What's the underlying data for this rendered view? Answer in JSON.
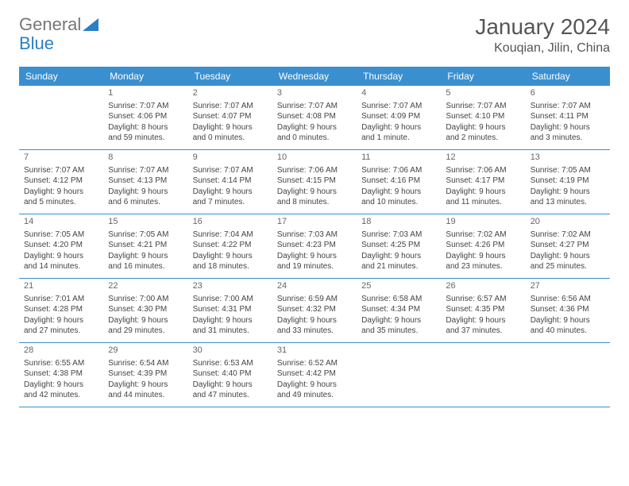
{
  "logo": {
    "text_gray": "General",
    "text_blue": "Blue"
  },
  "header": {
    "month": "January 2024",
    "location": "Kouqian, Jilin, China"
  },
  "colors": {
    "header_bg": "#3a8fcf",
    "header_text": "#ffffff",
    "border": "#3a8fcf",
    "text": "#444444",
    "title": "#555555",
    "bg": "#ffffff",
    "logo_gray": "#777777",
    "logo_blue": "#2b7fc4"
  },
  "layout": {
    "columns": 7,
    "fontsize_body": 10,
    "fontsize_header": 12,
    "fontsize_title": 28,
    "fontsize_location": 16
  },
  "weekdays": [
    "Sunday",
    "Monday",
    "Tuesday",
    "Wednesday",
    "Thursday",
    "Friday",
    "Saturday"
  ],
  "days": [
    null,
    {
      "n": "1",
      "sunrise": "7:07 AM",
      "sunset": "4:06 PM",
      "daylight": "8 hours and 59 minutes."
    },
    {
      "n": "2",
      "sunrise": "7:07 AM",
      "sunset": "4:07 PM",
      "daylight": "9 hours and 0 minutes."
    },
    {
      "n": "3",
      "sunrise": "7:07 AM",
      "sunset": "4:08 PM",
      "daylight": "9 hours and 0 minutes."
    },
    {
      "n": "4",
      "sunrise": "7:07 AM",
      "sunset": "4:09 PM",
      "daylight": "9 hours and 1 minute."
    },
    {
      "n": "5",
      "sunrise": "7:07 AM",
      "sunset": "4:10 PM",
      "daylight": "9 hours and 2 minutes."
    },
    {
      "n": "6",
      "sunrise": "7:07 AM",
      "sunset": "4:11 PM",
      "daylight": "9 hours and 3 minutes."
    },
    {
      "n": "7",
      "sunrise": "7:07 AM",
      "sunset": "4:12 PM",
      "daylight": "9 hours and 5 minutes."
    },
    {
      "n": "8",
      "sunrise": "7:07 AM",
      "sunset": "4:13 PM",
      "daylight": "9 hours and 6 minutes."
    },
    {
      "n": "9",
      "sunrise": "7:07 AM",
      "sunset": "4:14 PM",
      "daylight": "9 hours and 7 minutes."
    },
    {
      "n": "10",
      "sunrise": "7:06 AM",
      "sunset": "4:15 PM",
      "daylight": "9 hours and 8 minutes."
    },
    {
      "n": "11",
      "sunrise": "7:06 AM",
      "sunset": "4:16 PM",
      "daylight": "9 hours and 10 minutes."
    },
    {
      "n": "12",
      "sunrise": "7:06 AM",
      "sunset": "4:17 PM",
      "daylight": "9 hours and 11 minutes."
    },
    {
      "n": "13",
      "sunrise": "7:05 AM",
      "sunset": "4:19 PM",
      "daylight": "9 hours and 13 minutes."
    },
    {
      "n": "14",
      "sunrise": "7:05 AM",
      "sunset": "4:20 PM",
      "daylight": "9 hours and 14 minutes."
    },
    {
      "n": "15",
      "sunrise": "7:05 AM",
      "sunset": "4:21 PM",
      "daylight": "9 hours and 16 minutes."
    },
    {
      "n": "16",
      "sunrise": "7:04 AM",
      "sunset": "4:22 PM",
      "daylight": "9 hours and 18 minutes."
    },
    {
      "n": "17",
      "sunrise": "7:03 AM",
      "sunset": "4:23 PM",
      "daylight": "9 hours and 19 minutes."
    },
    {
      "n": "18",
      "sunrise": "7:03 AM",
      "sunset": "4:25 PM",
      "daylight": "9 hours and 21 minutes."
    },
    {
      "n": "19",
      "sunrise": "7:02 AM",
      "sunset": "4:26 PM",
      "daylight": "9 hours and 23 minutes."
    },
    {
      "n": "20",
      "sunrise": "7:02 AM",
      "sunset": "4:27 PM",
      "daylight": "9 hours and 25 minutes."
    },
    {
      "n": "21",
      "sunrise": "7:01 AM",
      "sunset": "4:28 PM",
      "daylight": "9 hours and 27 minutes."
    },
    {
      "n": "22",
      "sunrise": "7:00 AM",
      "sunset": "4:30 PM",
      "daylight": "9 hours and 29 minutes."
    },
    {
      "n": "23",
      "sunrise": "7:00 AM",
      "sunset": "4:31 PM",
      "daylight": "9 hours and 31 minutes."
    },
    {
      "n": "24",
      "sunrise": "6:59 AM",
      "sunset": "4:32 PM",
      "daylight": "9 hours and 33 minutes."
    },
    {
      "n": "25",
      "sunrise": "6:58 AM",
      "sunset": "4:34 PM",
      "daylight": "9 hours and 35 minutes."
    },
    {
      "n": "26",
      "sunrise": "6:57 AM",
      "sunset": "4:35 PM",
      "daylight": "9 hours and 37 minutes."
    },
    {
      "n": "27",
      "sunrise": "6:56 AM",
      "sunset": "4:36 PM",
      "daylight": "9 hours and 40 minutes."
    },
    {
      "n": "28",
      "sunrise": "6:55 AM",
      "sunset": "4:38 PM",
      "daylight": "9 hours and 42 minutes."
    },
    {
      "n": "29",
      "sunrise": "6:54 AM",
      "sunset": "4:39 PM",
      "daylight": "9 hours and 44 minutes."
    },
    {
      "n": "30",
      "sunrise": "6:53 AM",
      "sunset": "4:40 PM",
      "daylight": "9 hours and 47 minutes."
    },
    {
      "n": "31",
      "sunrise": "6:52 AM",
      "sunset": "4:42 PM",
      "daylight": "9 hours and 49 minutes."
    },
    null,
    null,
    null
  ],
  "labels": {
    "sunrise": "Sunrise:",
    "sunset": "Sunset:",
    "daylight": "Daylight:"
  }
}
